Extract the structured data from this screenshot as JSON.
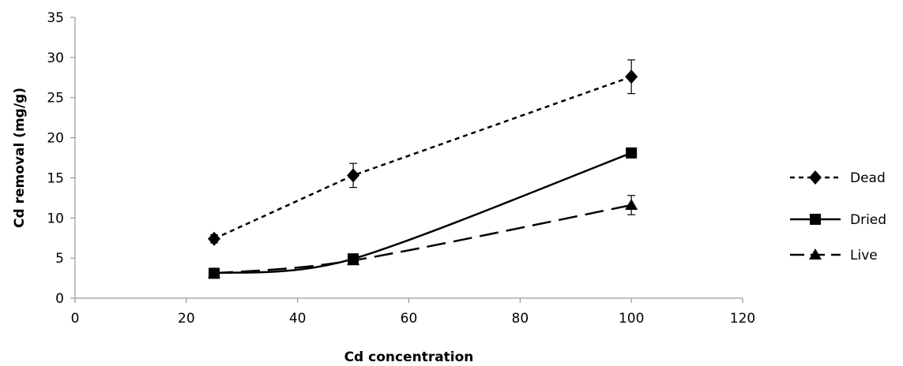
{
  "chart_data": {
    "type": "line",
    "title": "",
    "xlabel": "Cd concentration",
    "ylabel": "Cd removal (mg/g)",
    "xlim": [
      0,
      120
    ],
    "ylim": [
      0,
      35
    ],
    "xticks": [
      "0",
      "20",
      "40",
      "60",
      "80",
      "100",
      "120"
    ],
    "yticks": [
      "0",
      "5",
      "10",
      "15",
      "20",
      "25",
      "30",
      "35"
    ],
    "grid": false,
    "legend_position": "right",
    "x": [
      25,
      50,
      100
    ],
    "series": [
      {
        "name": "Dead",
        "marker": "diamond",
        "line_style": "dotted",
        "values": [
          7.4,
          15.3,
          27.6
        ],
        "error": [
          0.5,
          1.5,
          2.1
        ]
      },
      {
        "name": "Dried",
        "marker": "square",
        "line_style": "solid",
        "values": [
          3.1,
          4.9,
          18.1
        ],
        "error": [
          0.2,
          0.3,
          0.5
        ]
      },
      {
        "name": "Live",
        "marker": "triangle",
        "line_style": "dashed",
        "values": [
          3.1,
          4.7,
          11.6
        ],
        "error": [
          0.2,
          0.3,
          1.2
        ]
      }
    ]
  }
}
